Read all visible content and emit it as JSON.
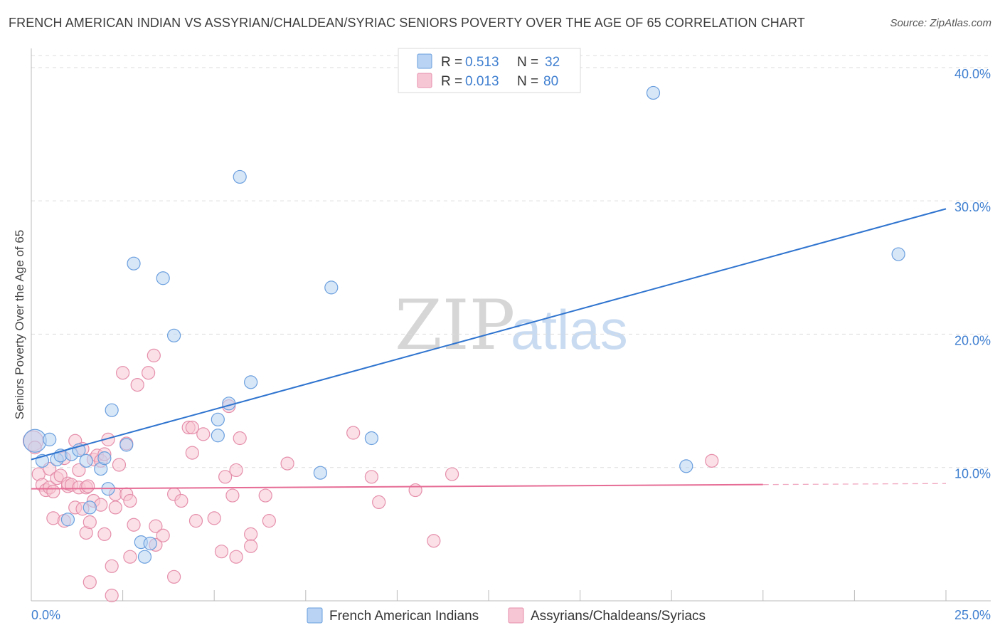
{
  "header": {
    "title": "FRENCH AMERICAN INDIAN VS ASSYRIAN/CHALDEAN/SYRIAC SENIORS POVERTY OVER THE AGE OF 65 CORRELATION CHART",
    "source": "Source: ZipAtlas.com"
  },
  "watermark": {
    "zip": "ZIP",
    "atlas": "atlas"
  },
  "legend": {
    "rows": [
      {
        "r_label": "R =",
        "r_value": "0.513",
        "n_label": "N =",
        "n_value": "32"
      },
      {
        "r_label": "R =",
        "r_value": "0.013",
        "n_label": "N =",
        "n_value": "80"
      }
    ]
  },
  "bottom_legend": {
    "series1": "French American Indians",
    "series2": "Assyrians/Chaldeans/Syriacs"
  },
  "colors": {
    "blue_fill": "#b8d3f3",
    "blue_stroke": "#6a9fde",
    "blue_line": "#2f74cf",
    "pink_fill": "#f7c6d4",
    "pink_stroke": "#e58fab",
    "pink_line": "#e66c95",
    "tick_text": "#3f7fd0",
    "grid": "#dddddd"
  },
  "chart_data": {
    "type": "scatter",
    "title": "FRENCH AMERICAN INDIAN VS ASSYRIAN/CHALDEAN/SYRIAC SENIORS POVERTY OVER THE AGE OF 65 CORRELATION CHART",
    "xlabel": "",
    "ylabel": "Seniors Poverty Over the Age of 65",
    "xlim": [
      0,
      25
    ],
    "ylim": [
      0,
      40.9
    ],
    "x_tick_labels": [
      "0.0%",
      "25.0%"
    ],
    "y_ticks": [
      10,
      20,
      30,
      40
    ],
    "y_tick_labels": [
      "10.0%",
      "20.0%",
      "30.0%",
      "40.0%"
    ],
    "grid": true,
    "legend_position": "top-center",
    "series": [
      {
        "name": "French American Indians",
        "color": "blue",
        "R": 0.513,
        "N": 32,
        "trend": {
          "x0": 0,
          "y0": 10.6,
          "x1": 25,
          "y1": 29.4,
          "dashed_from": null
        },
        "points": [
          [
            0.1,
            12.0,
            16
          ],
          [
            0.5,
            12.1,
            9
          ],
          [
            0.3,
            10.5,
            9
          ],
          [
            0.7,
            10.6,
            9
          ],
          [
            0.8,
            10.9,
            9
          ],
          [
            1.1,
            11.0,
            9
          ],
          [
            1.3,
            11.3,
            9
          ],
          [
            1.5,
            10.5,
            9
          ],
          [
            1.6,
            7.0,
            9
          ],
          [
            1.9,
            9.9,
            9
          ],
          [
            2.0,
            10.7,
            9
          ],
          [
            2.1,
            8.4,
            9
          ],
          [
            2.2,
            14.3,
            9
          ],
          [
            2.6,
            11.7,
            9
          ],
          [
            2.8,
            25.3,
            9
          ],
          [
            3.0,
            4.4,
            9
          ],
          [
            3.1,
            3.3,
            9
          ],
          [
            3.25,
            4.3,
            9
          ],
          [
            3.6,
            24.2,
            9
          ],
          [
            3.9,
            19.9,
            9
          ],
          [
            5.1,
            13.6,
            9
          ],
          [
            5.1,
            12.4,
            9
          ],
          [
            5.4,
            14.8,
            9
          ],
          [
            5.7,
            31.8,
            9
          ],
          [
            6.0,
            16.4,
            9
          ],
          [
            7.9,
            9.6,
            9
          ],
          [
            8.2,
            23.5,
            9
          ],
          [
            9.3,
            12.2,
            9
          ],
          [
            17.0,
            38.1,
            9
          ],
          [
            17.9,
            10.1,
            9
          ],
          [
            23.7,
            26.0,
            9
          ],
          [
            1.0,
            6.1,
            9
          ]
        ]
      },
      {
        "name": "Assyrians/Chaldeans/Syriacs",
        "color": "pink",
        "R": 0.013,
        "N": 80,
        "trend": {
          "x0": 0,
          "y0": 8.4,
          "x1": 25,
          "y1": 8.8,
          "dashed_from": 20
        },
        "points": [
          [
            0.05,
            12.0,
            14
          ],
          [
            0.1,
            11.5,
            9
          ],
          [
            0.2,
            9.5,
            9
          ],
          [
            0.3,
            8.7,
            9
          ],
          [
            0.4,
            8.3,
            9
          ],
          [
            0.5,
            9.9,
            9
          ],
          [
            0.5,
            8.5,
            9
          ],
          [
            0.6,
            8.2,
            9
          ],
          [
            0.6,
            6.2,
            9
          ],
          [
            0.7,
            9.2,
            9
          ],
          [
            0.8,
            9.4,
            9
          ],
          [
            0.9,
            6.0,
            9
          ],
          [
            0.9,
            10.7,
            9
          ],
          [
            1.0,
            8.6,
            9
          ],
          [
            1.0,
            8.8,
            9
          ],
          [
            1.1,
            8.7,
            9
          ],
          [
            1.2,
            7.0,
            9
          ],
          [
            1.2,
            12.0,
            9
          ],
          [
            1.3,
            8.5,
            9
          ],
          [
            1.3,
            9.8,
            9
          ],
          [
            1.4,
            6.9,
            9
          ],
          [
            1.4,
            11.4,
            9
          ],
          [
            1.5,
            8.5,
            9
          ],
          [
            1.5,
            5.1,
            9
          ],
          [
            1.6,
            5.9,
            9
          ],
          [
            1.6,
            1.4,
            9
          ],
          [
            1.7,
            7.5,
            9
          ],
          [
            1.7,
            10.6,
            9
          ],
          [
            1.8,
            10.9,
            9
          ],
          [
            1.9,
            10.5,
            9
          ],
          [
            1.9,
            7.2,
            9
          ],
          [
            2.0,
            11.0,
            9
          ],
          [
            2.0,
            5.0,
            9
          ],
          [
            2.1,
            12.1,
            9
          ],
          [
            2.2,
            2.6,
            9
          ],
          [
            2.2,
            0.4,
            9
          ],
          [
            2.3,
            7.0,
            9
          ],
          [
            2.3,
            8.0,
            9
          ],
          [
            2.4,
            10.2,
            9
          ],
          [
            2.5,
            17.1,
            9
          ],
          [
            2.6,
            11.8,
            9
          ],
          [
            2.6,
            8.0,
            9
          ],
          [
            2.7,
            7.5,
            9
          ],
          [
            2.7,
            3.3,
            9
          ],
          [
            2.8,
            5.7,
            9
          ],
          [
            2.9,
            16.2,
            9
          ],
          [
            3.2,
            17.1,
            9
          ],
          [
            3.35,
            18.4,
            9
          ],
          [
            3.4,
            5.6,
            9
          ],
          [
            3.4,
            4.2,
            9
          ],
          [
            3.6,
            4.9,
            9
          ],
          [
            3.9,
            8.0,
            9
          ],
          [
            3.9,
            1.8,
            9
          ],
          [
            4.1,
            7.5,
            9
          ],
          [
            4.3,
            13.0,
            9
          ],
          [
            4.4,
            13.0,
            9
          ],
          [
            4.4,
            11.1,
            9
          ],
          [
            4.5,
            6.0,
            9
          ],
          [
            4.7,
            12.5,
            9
          ],
          [
            5.0,
            6.2,
            9
          ],
          [
            5.2,
            3.7,
            9
          ],
          [
            5.3,
            9.3,
            9
          ],
          [
            5.4,
            14.6,
            9
          ],
          [
            5.5,
            7.9,
            9
          ],
          [
            5.6,
            9.8,
            9
          ],
          [
            5.6,
            3.3,
            9
          ],
          [
            5.7,
            12.2,
            9
          ],
          [
            6.0,
            5.0,
            9
          ],
          [
            6.0,
            4.1,
            9
          ],
          [
            6.4,
            7.9,
            9
          ],
          [
            6.5,
            6.0,
            9
          ],
          [
            7.0,
            10.3,
            9
          ],
          [
            8.8,
            12.6,
            9
          ],
          [
            9.3,
            9.3,
            9
          ],
          [
            9.5,
            7.4,
            9
          ],
          [
            10.5,
            8.3,
            9
          ],
          [
            11.0,
            4.5,
            9
          ],
          [
            11.5,
            9.5,
            9
          ],
          [
            18.6,
            10.5,
            9
          ],
          [
            1.55,
            8.6,
            9
          ]
        ]
      }
    ]
  }
}
